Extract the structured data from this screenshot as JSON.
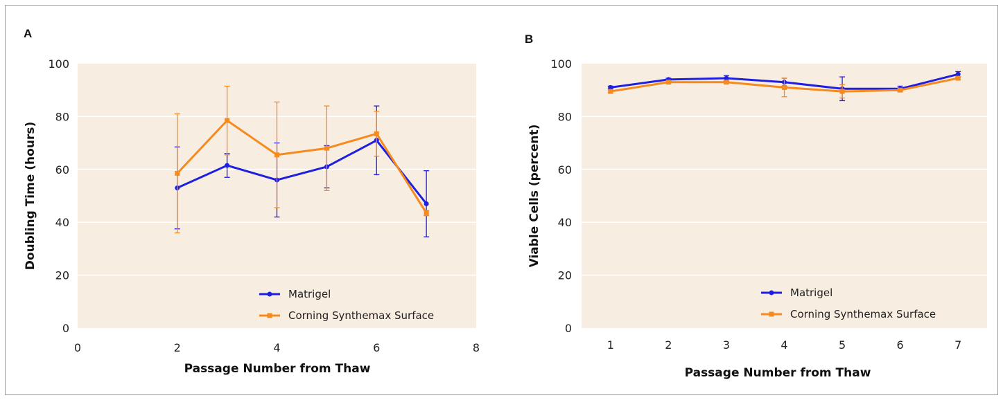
{
  "chart_data": [
    {
      "panel": "A",
      "type": "line",
      "xlabel": "Passage Number from Thaw",
      "ylabel": "Doubling Time (hours)",
      "xlim": [
        0,
        8
      ],
      "ylim": [
        0,
        100
      ],
      "xticks": [
        "0",
        "2",
        "4",
        "6",
        "8"
      ],
      "yticks": [
        "0",
        "20",
        "40",
        "60",
        "80",
        "100"
      ],
      "grid": "horizontal",
      "legend_position": "bottom-right",
      "series": [
        {
          "name": "Matrigel",
          "color": "#1f1fe0",
          "marker": "circle",
          "x": [
            2,
            3,
            4,
            5,
            6,
            7
          ],
          "y": [
            53,
            61.5,
            56,
            61,
            71,
            47
          ],
          "err": [
            15.5,
            4.5,
            14,
            8,
            13,
            12.5
          ]
        },
        {
          "name": "Corning Synthemax Surface",
          "color": "#f58a1f",
          "marker": "square",
          "x": [
            2,
            3,
            4,
            5,
            6,
            7
          ],
          "y": [
            58.5,
            78.5,
            65.5,
            68,
            73.5,
            43.5
          ],
          "err": [
            22.5,
            13,
            20,
            16,
            8.5,
            1
          ]
        }
      ]
    },
    {
      "panel": "B",
      "type": "line",
      "xlabel": "Passage Number from Thaw",
      "ylabel": "Viable Cells (percent)",
      "xlim": [
        0.5,
        7.5
      ],
      "ylim": [
        0,
        100
      ],
      "xticks": [
        "1",
        "2",
        "3",
        "4",
        "5",
        "6",
        "7"
      ],
      "yticks": [
        "0",
        "20",
        "40",
        "60",
        "80",
        "100"
      ],
      "grid": "horizontal",
      "legend_position": "bottom-right",
      "series": [
        {
          "name": "Matrigel",
          "color": "#1f1fe0",
          "marker": "circle",
          "x": [
            1,
            2,
            3,
            4,
            5,
            6,
            7
          ],
          "y": [
            91,
            94,
            94.5,
            93,
            90.5,
            90.5,
            96
          ],
          "err": [
            0.5,
            0.5,
            1,
            1.5,
            4.5,
            1,
            1
          ]
        },
        {
          "name": "Corning Synthemax Surface",
          "color": "#f58a1f",
          "marker": "square",
          "x": [
            1,
            2,
            3,
            4,
            5,
            6,
            7
          ],
          "y": [
            89.5,
            93,
            93,
            91,
            89.5,
            90,
            94.5
          ],
          "err": [
            0.5,
            0.5,
            0.5,
            3.5,
            2.5,
            0.5,
            0.5
          ]
        }
      ]
    }
  ]
}
